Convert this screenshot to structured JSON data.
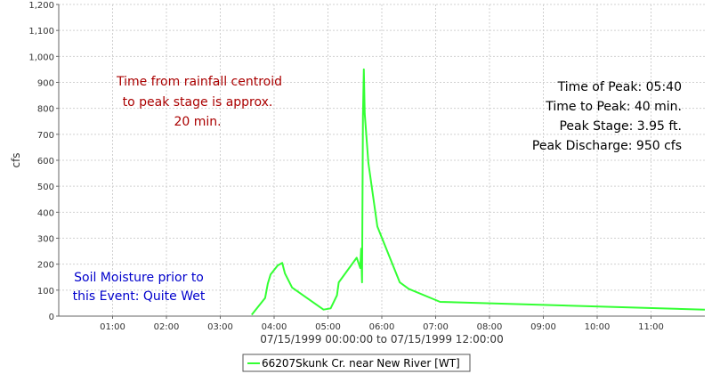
{
  "chart_data": {
    "type": "line",
    "xlabel": "07/15/1999 00:00:00 to 07/15/1999 12:00:00",
    "ylabel": "cfs",
    "xlim": [
      "00:00",
      "12:00"
    ],
    "ylim": [
      0,
      1200
    ],
    "grid": true,
    "x_ticks": [
      "01:00",
      "02:00",
      "03:00",
      "04:00",
      "05:00",
      "06:00",
      "07:00",
      "08:00",
      "09:00",
      "10:00",
      "11:00"
    ],
    "y_ticks": [
      "0",
      "100",
      "200",
      "300",
      "400",
      "500",
      "600",
      "700",
      "800",
      "900",
      "1,000",
      "1,100",
      "1,200"
    ],
    "series": [
      {
        "name": "66207Skunk Cr. near New River [WT]",
        "color": "#33ff33",
        "x": [
          "03:35",
          "03:50",
          "03:53",
          "03:56",
          "04:04",
          "04:09",
          "04:12",
          "04:20",
          "04:55",
          "05:03",
          "05:10",
          "05:12",
          "05:32",
          "05:36",
          "05:37",
          "05:38",
          "05:39",
          "05:40",
          "05:41",
          "05:45",
          "05:55",
          "06:20",
          "06:30",
          "07:05",
          "12:00"
        ],
        "values": [
          5,
          70,
          125,
          160,
          195,
          205,
          165,
          110,
          25,
          30,
          80,
          130,
          225,
          185,
          260,
          130,
          770,
          950,
          780,
          590,
          345,
          130,
          105,
          55,
          25
        ]
      }
    ]
  },
  "annotations": {
    "centroid": [
      "Time from rainfall centroid",
      "to peak stage is approx.",
      "20 min."
    ],
    "peak": [
      "Time of Peak: 05:40",
      "Time to Peak: 40 min.",
      "Peak Stage: 3.95 ft.",
      "Peak Discharge: 950 cfs"
    ],
    "soil": [
      "Soil Moisture prior to",
      "this Event: Quite Wet"
    ]
  },
  "colors": {
    "centroid_text": "#aa0000",
    "peak_text": "#000000",
    "soil_text": "#0000cc",
    "grid": "#d0d0d0"
  }
}
